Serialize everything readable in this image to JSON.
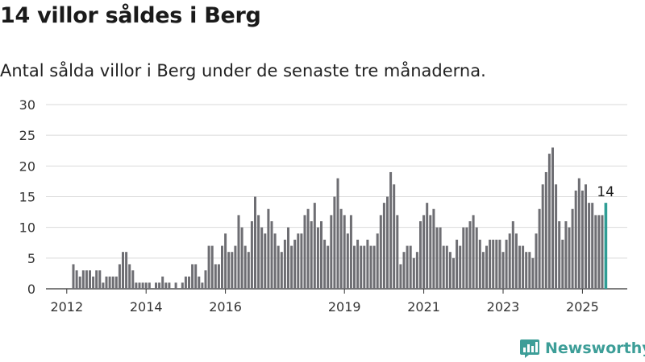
{
  "title": "14 villor såldes i Berg",
  "subtitle": "Antal sålda villor i Berg under de senaste tre månaderna.",
  "brand": {
    "name": "Newsworthy",
    "logo_icon": "newsworthy-chart-bubble-icon"
  },
  "colors": {
    "bar": "#6e6e73",
    "highlight": "#2f9d95",
    "grid": "#d9d9d9",
    "axis": "#333333",
    "brand": "#3d9e98"
  },
  "chart_data": {
    "type": "bar",
    "title": "14 villor såldes i Berg",
    "subtitle": "Antal sålda villor i Berg under de senaste tre månaderna.",
    "xlabel": "",
    "ylabel": "",
    "ylim": [
      0,
      30
    ],
    "yticks": [
      0,
      5,
      10,
      15,
      20,
      25,
      30
    ],
    "xticks": [
      "2012",
      "2014",
      "2016",
      "2019",
      "2021",
      "2023",
      "2025"
    ],
    "grid": true,
    "legend": "none",
    "frequency": "monthly, rolling three-month sum",
    "highlight_label": "14",
    "values": [
      4,
      3,
      2,
      3,
      3,
      3,
      2,
      3,
      3,
      1,
      2,
      2,
      2,
      2,
      4,
      6,
      6,
      4,
      3,
      1,
      1,
      1,
      1,
      1,
      0,
      1,
      1,
      2,
      1,
      1,
      0,
      1,
      0,
      1,
      2,
      2,
      4,
      4,
      2,
      1,
      3,
      7,
      7,
      4,
      4,
      7,
      9,
      6,
      6,
      7,
      12,
      10,
      7,
      6,
      11,
      15,
      12,
      10,
      9,
      13,
      11,
      9,
      7,
      6,
      8,
      10,
      7,
      8,
      9,
      9,
      12,
      13,
      11,
      14,
      10,
      11,
      8,
      7,
      12,
      15,
      18,
      13,
      12,
      9,
      12,
      7,
      8,
      7,
      7,
      8,
      7,
      7,
      9,
      12,
      14,
      15,
      19,
      17,
      12,
      4,
      6,
      7,
      7,
      5,
      6,
      11,
      12,
      14,
      12,
      13,
      10,
      10,
      7,
      7,
      6,
      5,
      8,
      7,
      10,
      10,
      11,
      12,
      10,
      8,
      6,
      7,
      8,
      8,
      8,
      8,
      6,
      8,
      9,
      11,
      9,
      7,
      7,
      6,
      6,
      5,
      9,
      13,
      17,
      19,
      22,
      23,
      17,
      11,
      8,
      11,
      10,
      13,
      16,
      18,
      16,
      17,
      14,
      14,
      12,
      12,
      12,
      14
    ]
  }
}
